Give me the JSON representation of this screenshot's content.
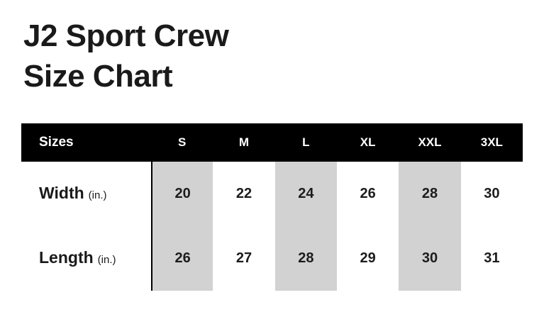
{
  "title": {
    "line1": "J2 Sport Crew",
    "line2": "Size Chart"
  },
  "table": {
    "header_label": "Sizes",
    "columns": [
      "S",
      "M",
      "L",
      "XL",
      "XXL",
      "3XL"
    ],
    "rows": [
      {
        "label": "Width",
        "unit": "(in.)",
        "values": [
          20,
          22,
          24,
          26,
          28,
          30
        ]
      },
      {
        "label": "Length",
        "unit": "(in.)",
        "values": [
          26,
          27,
          28,
          29,
          30,
          31
        ]
      }
    ]
  },
  "chart_data": {
    "type": "table",
    "title": "J2 Sport Crew Size Chart",
    "columns": [
      "Sizes",
      "S",
      "M",
      "L",
      "XL",
      "XXL",
      "3XL"
    ],
    "rows": [
      [
        "Width (in.)",
        20,
        22,
        24,
        26,
        28,
        30
      ],
      [
        "Length (in.)",
        26,
        27,
        28,
        29,
        30,
        31
      ]
    ],
    "highlighted_columns": [
      "S",
      "L",
      "XXL"
    ],
    "layout": "header row black with white text; columns S, L, XXL shaded light gray; black vertical rule at left edge of S column"
  },
  "colors": {
    "background": "#ffffff",
    "header_bg": "#000000",
    "header_text": "#ffffff",
    "highlight_bg": "#d2d2d2",
    "text": "#1a1a1a"
  }
}
